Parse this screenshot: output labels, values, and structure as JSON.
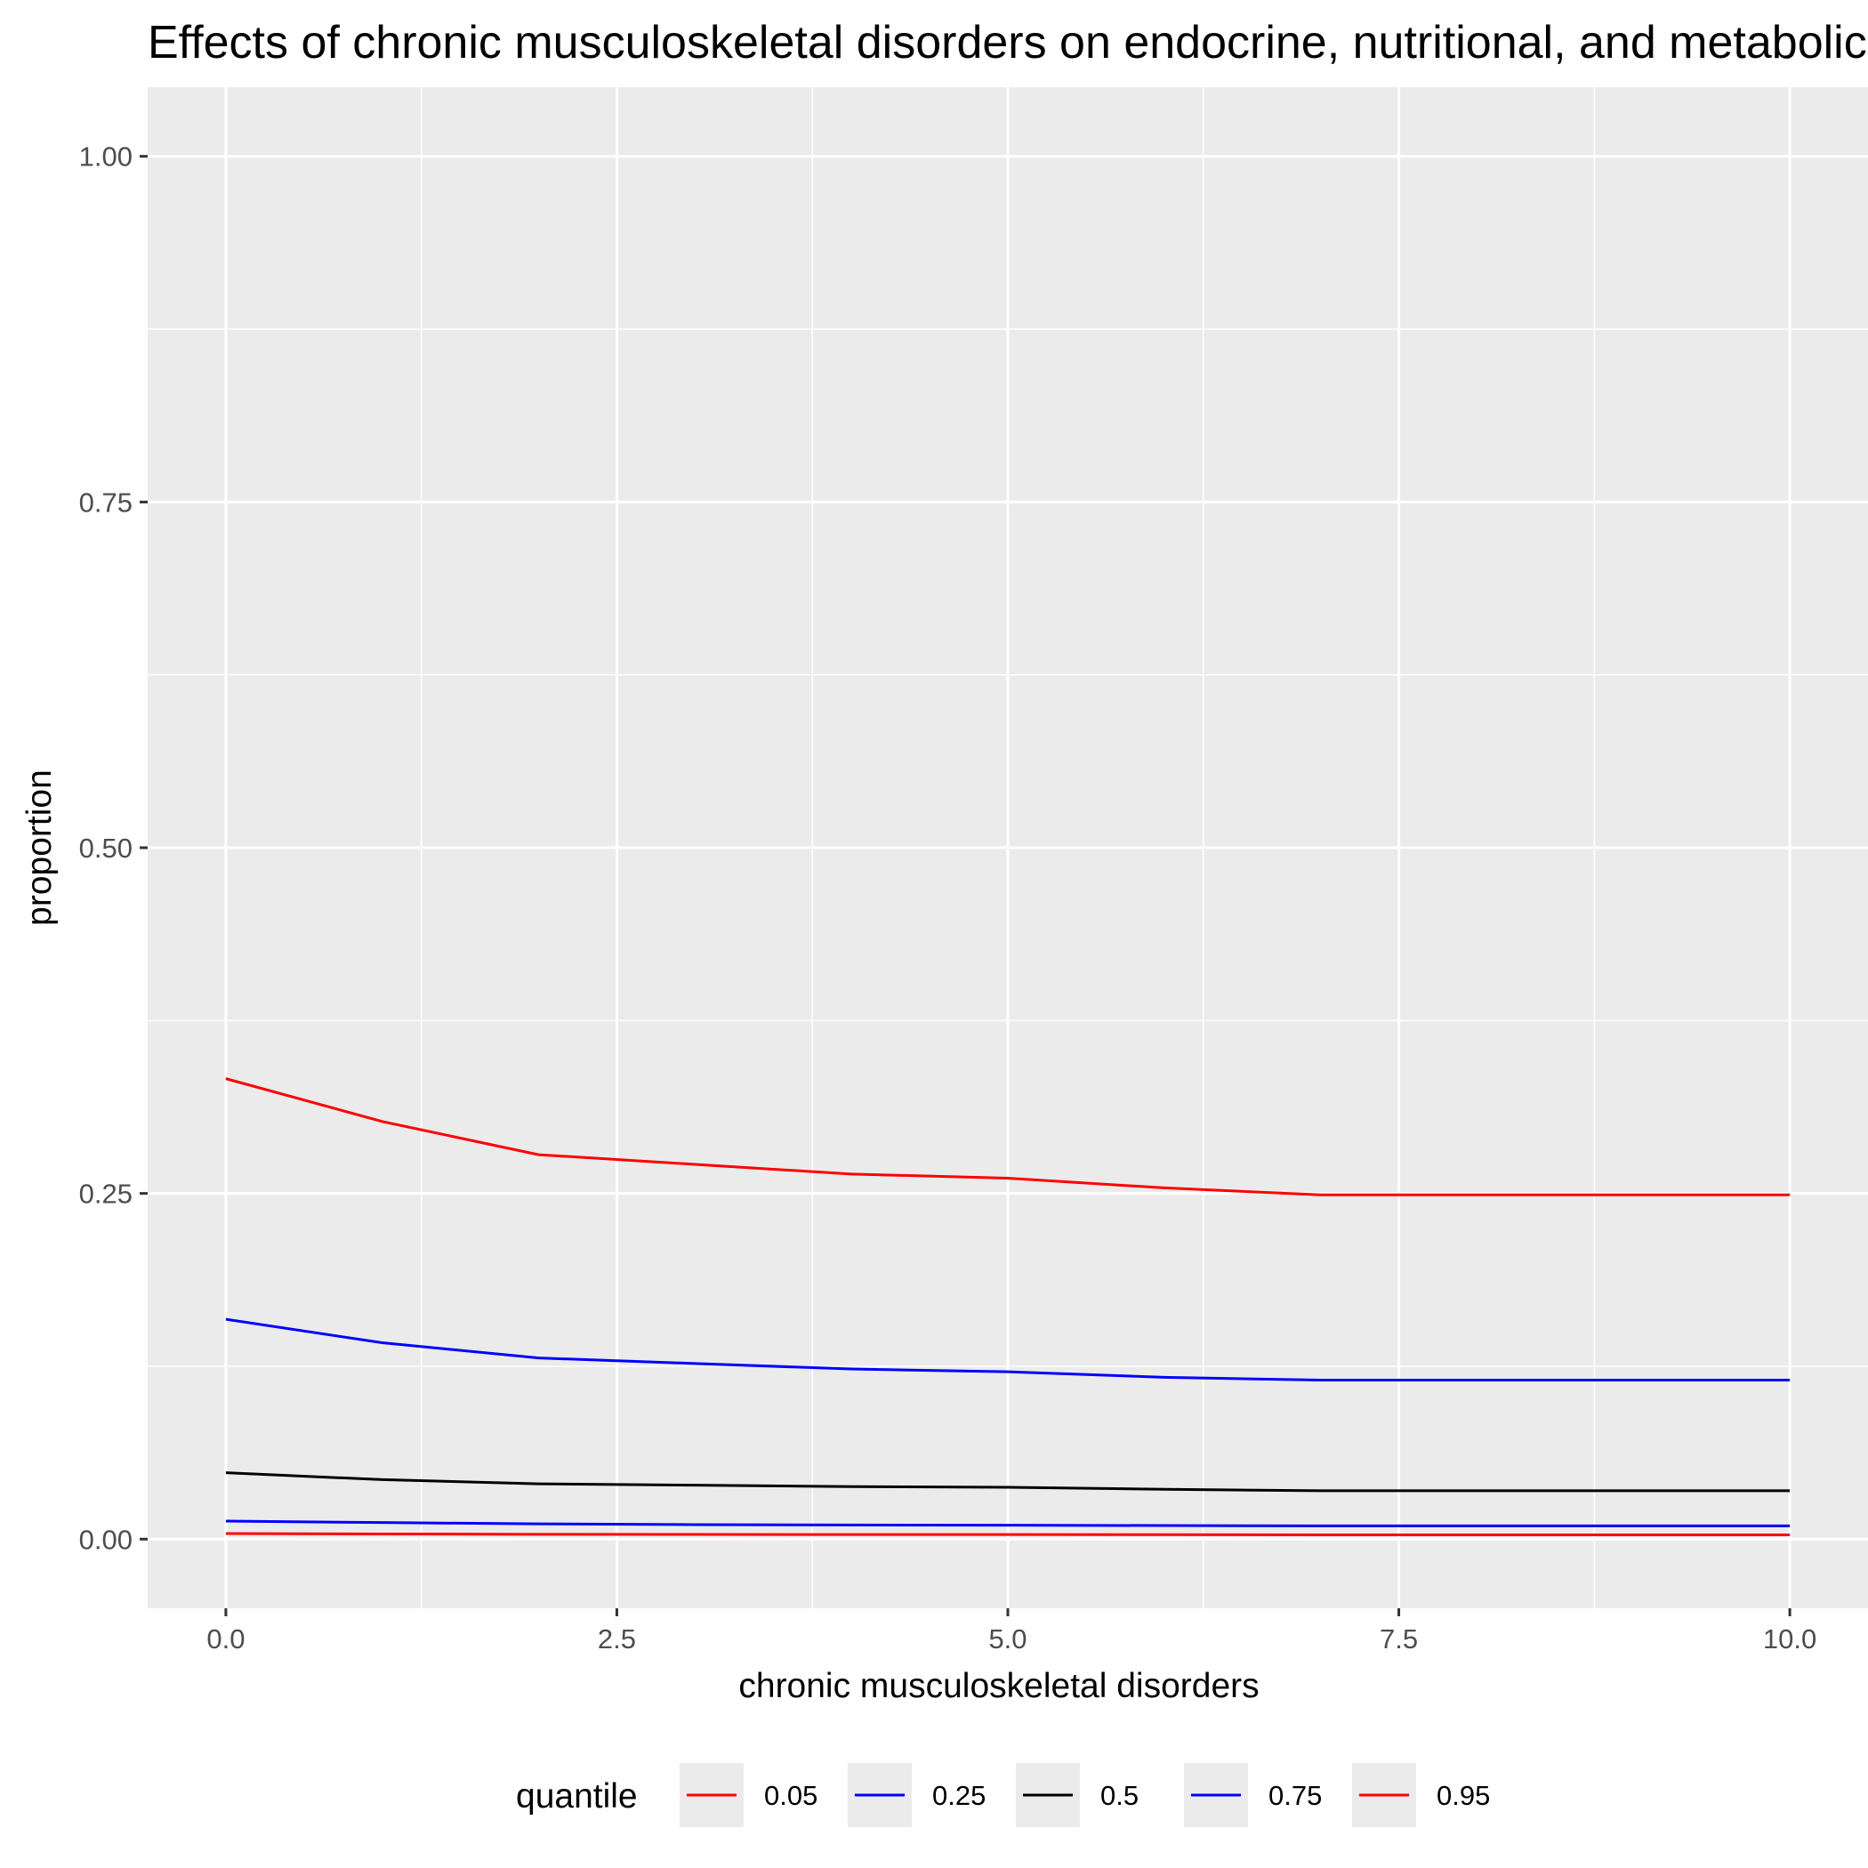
{
  "chart_data": {
    "type": "line",
    "title": "Effects of chronic musculoskeletal disorders on endocrine, nutritional, and metabolic diseases",
    "xlabel": "chronic musculoskeletal disorders",
    "ylabel": "proportion",
    "xlim": [
      -0.5,
      10.5
    ],
    "ylim": [
      -0.05,
      1.05
    ],
    "x_ticks": [
      0,
      2.5,
      5,
      7.5,
      10
    ],
    "x_tick_labels": [
      "0.0",
      "2.5",
      "5.0",
      "7.5",
      "10.0"
    ],
    "y_ticks": [
      0,
      0.25,
      0.5,
      0.75,
      1.0
    ],
    "y_tick_labels": [
      "0.00",
      "0.25",
      "0.50",
      "0.75",
      "1.00"
    ],
    "grid": true,
    "legend": {
      "title": "quantile",
      "position": "bottom"
    },
    "x": [
      0,
      1,
      2,
      3,
      4,
      5,
      6,
      7,
      8,
      9,
      10
    ],
    "series": [
      {
        "name": "0.05",
        "color": "#ff0000",
        "values": [
          0.004,
          0.0037,
          0.0035,
          0.0034,
          0.0033,
          0.0033,
          0.0032,
          0.0031,
          0.0031,
          0.0031,
          0.0031
        ]
      },
      {
        "name": "0.25",
        "color": "#0000ff",
        "values": [
          0.013,
          0.012,
          0.011,
          0.0105,
          0.0102,
          0.0101,
          0.0098,
          0.0096,
          0.0096,
          0.0096,
          0.0096
        ]
      },
      {
        "name": "0.5",
        "color": "#000000",
        "values": [
          0.048,
          0.043,
          0.04,
          0.039,
          0.038,
          0.0375,
          0.036,
          0.035,
          0.035,
          0.035,
          0.035
        ]
      },
      {
        "name": "0.75",
        "color": "#0000ff",
        "values": [
          0.159,
          0.142,
          0.131,
          0.127,
          0.123,
          0.121,
          0.117,
          0.115,
          0.115,
          0.115,
          0.115
        ]
      },
      {
        "name": "0.95",
        "color": "#ff0000",
        "values": [
          0.333,
          0.302,
          0.278,
          0.271,
          0.264,
          0.261,
          0.254,
          0.249,
          0.249,
          0.249,
          0.249
        ]
      }
    ]
  }
}
